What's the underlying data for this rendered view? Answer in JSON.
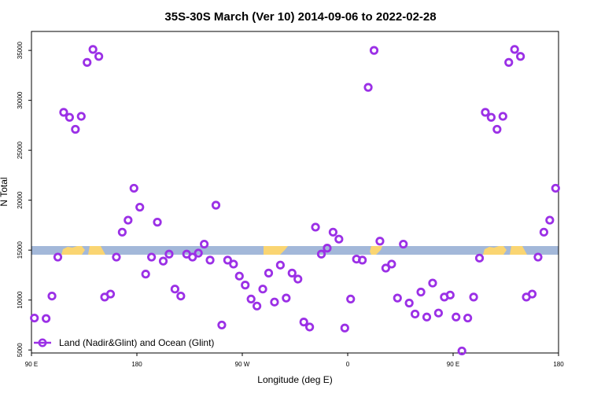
{
  "chart_data": {
    "type": "scatter",
    "title": "35S-30S March (Ver 10)   2014-09-06 to 2022-02-28",
    "xlabel": "Longitude (deg E)",
    "ylabel": "N Total",
    "xlim": [
      90,
      540
    ],
    "ylim": [
      4700,
      36900
    ],
    "x_ticks": [
      {
        "value": 90,
        "label": "90 E"
      },
      {
        "value": 180,
        "label": "180"
      },
      {
        "value": 270,
        "label": "90 W"
      },
      {
        "value": 360,
        "label": "0"
      },
      {
        "value": 450,
        "label": "90 E"
      },
      {
        "value": 540,
        "label": "180"
      }
    ],
    "y_ticks": [
      5000,
      10000,
      15000,
      20000,
      25000,
      30000,
      35000
    ],
    "grid": false,
    "legend_position": "bottom-left",
    "colors": {
      "points": "#9b30e6",
      "ocean": "#a3b8d9",
      "land": "#fad572"
    },
    "series": [
      {
        "name": "Land (Nadir&Glint) and Ocean (Glint)",
        "x": [
          92.5,
          102.5,
          107.5,
          112.5,
          117.5,
          122.5,
          127.5,
          132.5,
          137.5,
          142.5,
          147.5,
          152.5,
          157.5,
          162.5,
          167.5,
          172.5,
          177.5,
          182.5,
          187.5,
          192.5,
          197.5,
          202.5,
          207.5,
          212.5,
          217.5,
          222.5,
          227.5,
          232.5,
          237.5,
          242.5,
          247.5,
          252.5,
          257.5,
          262.5,
          267.5,
          272.5,
          277.5,
          282.5,
          287.5,
          292.5,
          297.5,
          302.5,
          307.5,
          312.5,
          317.5,
          322.5,
          327.5,
          332.5,
          337.5,
          342.5,
          347.5,
          352.5,
          357.5,
          362.5,
          367.5,
          372.5,
          377.5,
          382.5,
          387.5,
          392.5,
          397.5,
          402.5,
          407.5,
          412.5,
          417.5,
          422.5,
          427.5,
          432.5,
          437.5,
          442.5,
          447.5,
          452.5,
          457.5,
          462.5,
          467.5,
          472.5,
          477.5,
          482.5,
          487.5,
          492.5,
          497.5,
          502.5,
          507.5,
          512.5,
          517.5,
          522.5,
          527.5,
          532.5,
          537.5
        ],
        "y": [
          8200,
          8150,
          10400,
          14300,
          28800,
          28300,
          27100,
          28400,
          33800,
          35100,
          34400,
          10300,
          10600,
          14300,
          16800,
          18000,
          21200,
          19300,
          12600,
          14300,
          17800,
          13900,
          14600,
          11100,
          10400,
          14600,
          14300,
          14700,
          15600,
          14000,
          19500,
          7500,
          14000,
          13600,
          12400,
          11500,
          10100,
          9400,
          11100,
          12700,
          9800,
          13500,
          10200,
          12700,
          12100,
          7800,
          7300,
          17300,
          14600,
          15200,
          16800,
          16100,
          7200,
          10100,
          14100,
          14000,
          31300,
          35000,
          15900,
          13200,
          13600,
          10200,
          15600,
          9700,
          8600,
          10800,
          8300,
          11700,
          8700,
          10300,
          10500,
          8300,
          4900,
          8200,
          10300,
          14200,
          28800,
          28300,
          27100,
          28400,
          33800,
          35100,
          34400,
          10300,
          10600,
          14300,
          16800,
          18000,
          21200
        ]
      }
    ]
  }
}
